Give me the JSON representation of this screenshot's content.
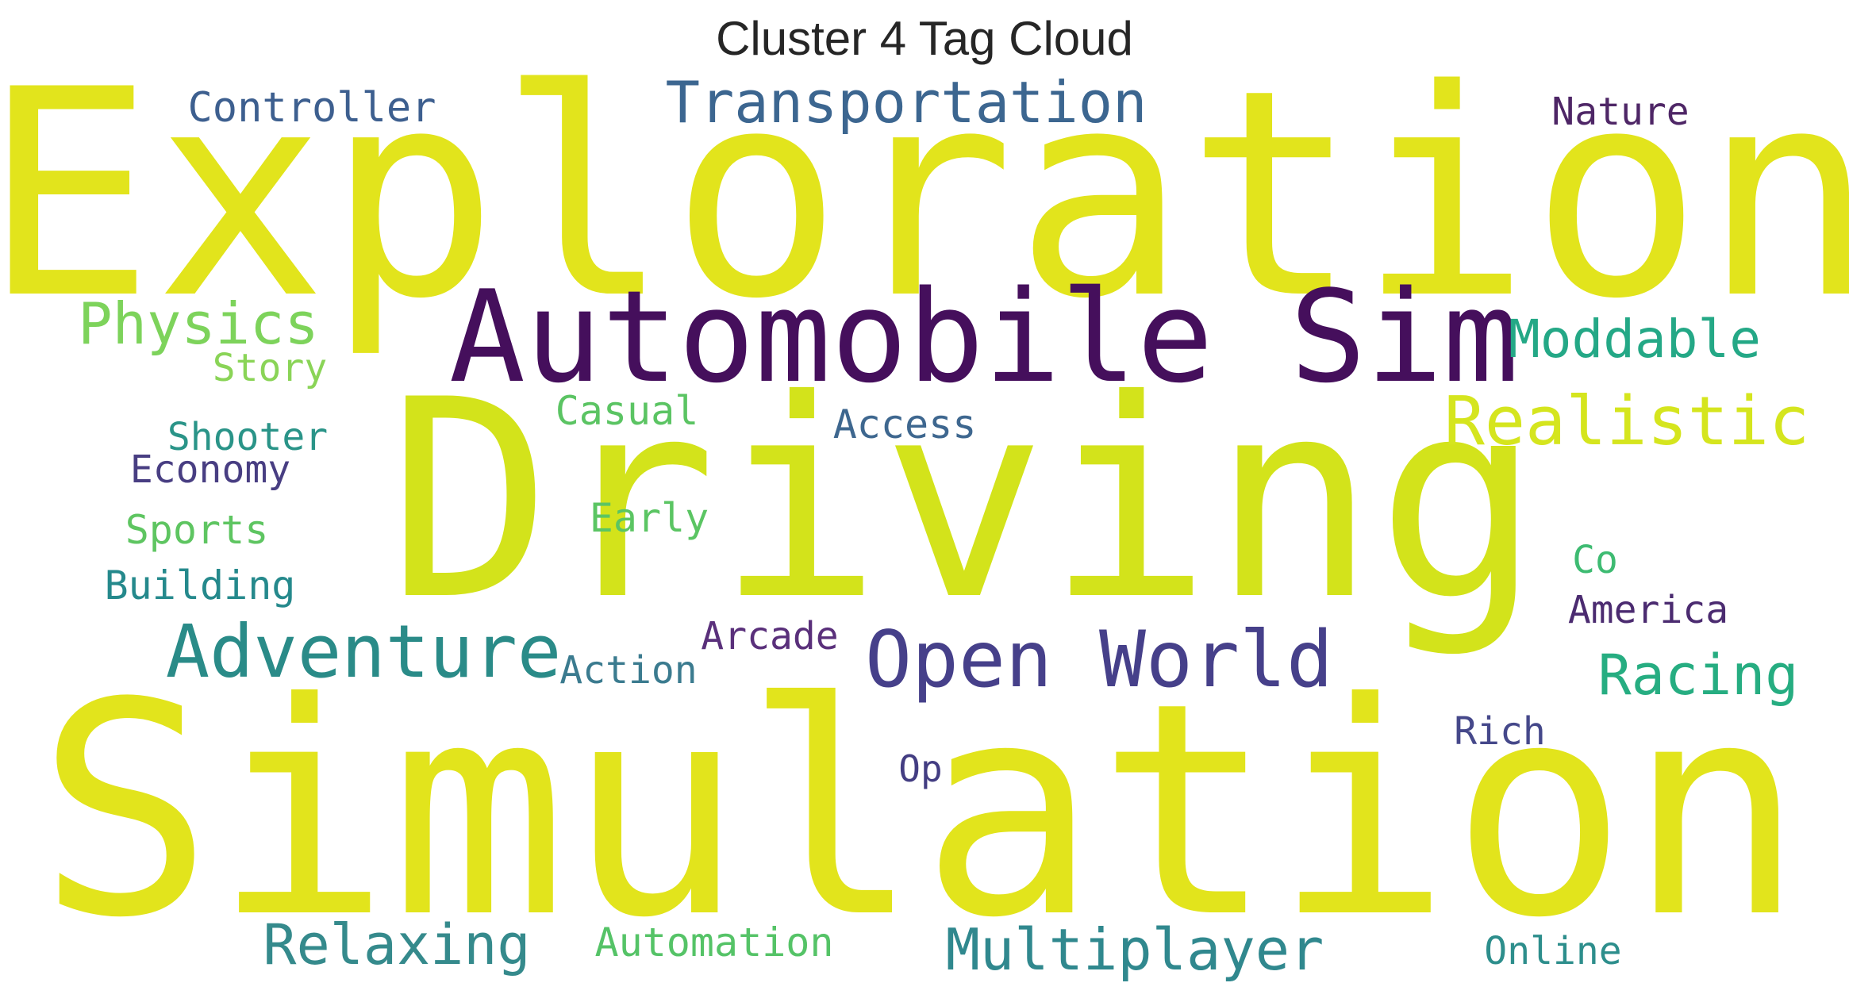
{
  "chart_data": {
    "type": "wordcloud",
    "title": "Cluster 4 Tag Cloud",
    "words": [
      {
        "text": "Exploration",
        "weight": 1.0,
        "color": "#e2e41c"
      },
      {
        "text": "Simulation",
        "weight": 1.0,
        "color": "#e2e41c"
      },
      {
        "text": "Driving",
        "weight": 0.95,
        "color": "#d3e31b"
      },
      {
        "text": "Automobile Sim",
        "weight": 0.45,
        "color": "#450f5c"
      },
      {
        "text": "Open World",
        "weight": 0.3,
        "color": "#46408a"
      },
      {
        "text": "Adventure",
        "weight": 0.28,
        "color": "#2a8b88"
      },
      {
        "text": "Realistic",
        "weight": 0.28,
        "color": "#d5e51e"
      },
      {
        "text": "Multiplayer",
        "weight": 0.24,
        "color": "#30888e"
      },
      {
        "text": "Transportation",
        "weight": 0.24,
        "color": "#3c6690"
      },
      {
        "text": "Physics",
        "weight": 0.24,
        "color": "#7dd35b"
      },
      {
        "text": "Relaxing",
        "weight": 0.22,
        "color": "#358a8c"
      },
      {
        "text": "Racing",
        "weight": 0.22,
        "color": "#26ad81"
      },
      {
        "text": "Moddable",
        "weight": 0.21,
        "color": "#24a886"
      },
      {
        "text": "Controller",
        "weight": 0.15,
        "color": "#3d5f8f"
      },
      {
        "text": "Nature",
        "weight": 0.14,
        "color": "#4e2666"
      },
      {
        "text": "Story",
        "weight": 0.14,
        "color": "#8ad457"
      },
      {
        "text": "Casual",
        "weight": 0.14,
        "color": "#5bc463"
      },
      {
        "text": "Access",
        "weight": 0.14,
        "color": "#3e678f"
      },
      {
        "text": "Shooter",
        "weight": 0.14,
        "color": "#2a9488"
      },
      {
        "text": "Economy",
        "weight": 0.14,
        "color": "#483e82"
      },
      {
        "text": "Sports",
        "weight": 0.14,
        "color": "#5ec561"
      },
      {
        "text": "Early",
        "weight": 0.14,
        "color": "#5bc563"
      },
      {
        "text": "Building",
        "weight": 0.14,
        "color": "#25898c"
      },
      {
        "text": "Co",
        "weight": 0.13,
        "color": "#3ebb72"
      },
      {
        "text": "America",
        "weight": 0.13,
        "color": "#4b2b70"
      },
      {
        "text": "Arcade",
        "weight": 0.13,
        "color": "#5a307b"
      },
      {
        "text": "Action",
        "weight": 0.13,
        "color": "#3b7b8f"
      },
      {
        "text": "Rich",
        "weight": 0.13,
        "color": "#45488a"
      },
      {
        "text": "Op",
        "weight": 0.12,
        "color": "#433d82"
      },
      {
        "text": "Automation",
        "weight": 0.14,
        "color": "#55c367"
      },
      {
        "text": "Online",
        "weight": 0.14,
        "color": "#2d8e8c"
      }
    ]
  }
}
